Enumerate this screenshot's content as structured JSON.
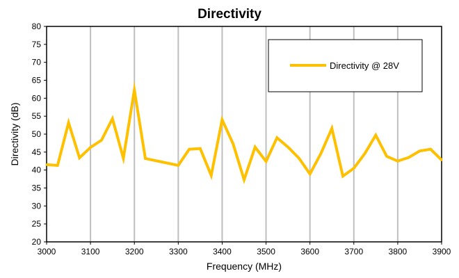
{
  "chart_data": {
    "type": "line",
    "title": "Directivity",
    "xlabel": "Frequency (MHz)",
    "ylabel": "Directivity (dB)",
    "xlim": [
      3000,
      3900
    ],
    "ylim": [
      20,
      80
    ],
    "x_ticks": [
      "3000",
      "3100",
      "3200",
      "3300",
      "3400",
      "3500",
      "3600",
      "3700",
      "3800",
      "3900"
    ],
    "y_ticks": [
      "20",
      "25",
      "30",
      "35",
      "40",
      "45",
      "50",
      "55",
      "60",
      "65",
      "70",
      "75",
      "80"
    ],
    "grid": "vertical",
    "legend_position": "top-right",
    "series": [
      {
        "name": "Directivity @ 28V",
        "color": "#FFC000",
        "x": [
          3000,
          3025,
          3050,
          3075,
          3100,
          3125,
          3150,
          3175,
          3200,
          3225,
          3300,
          3325,
          3350,
          3375,
          3400,
          3425,
          3450,
          3475,
          3500,
          3525,
          3550,
          3575,
          3600,
          3625,
          3650,
          3675,
          3700,
          3725,
          3750,
          3775,
          3800,
          3825,
          3850,
          3875,
          3900
        ],
        "y": [
          41.5,
          41.3,
          53.2,
          43.4,
          46.3,
          48.3,
          54.3,
          43.3,
          62.3,
          43.2,
          41.3,
          45.8,
          46.0,
          38.5,
          54.0,
          47.3,
          37.3,
          46.4,
          42.4,
          49.0,
          46.4,
          43.3,
          38.9,
          44.6,
          51.6,
          38.3,
          40.5,
          44.6,
          49.7,
          43.8,
          42.5,
          43.5,
          45.3,
          45.8,
          42.8
        ]
      }
    ]
  }
}
